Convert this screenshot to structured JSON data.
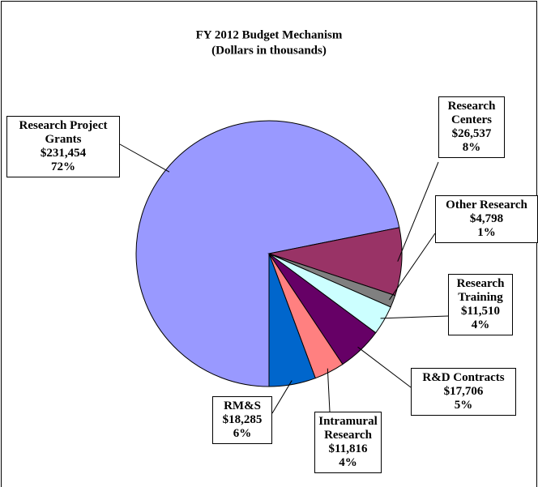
{
  "chart_data": {
    "type": "pie",
    "title": "FY  2012 Budget Mechanism",
    "subtitle": "(Dollars in thousands)",
    "categories": [
      "Research Project Grants",
      "Research Centers",
      "Other Research",
      "Research Training",
      "R&D Contracts",
      "Intramural Research",
      "RM&S"
    ],
    "values": [
      231454,
      26537,
      4798,
      11510,
      17706,
      11816,
      18285
    ],
    "value_labels": [
      "$231,454",
      "$26,537",
      "$4,798",
      "$11,510",
      "$17,706",
      "$11,816",
      "$18,285"
    ],
    "percentages": [
      72,
      8,
      1,
      4,
      5,
      4,
      6
    ],
    "percentage_labels": [
      "72%",
      "8%",
      "1%",
      "4%",
      "5%",
      "4%",
      "6%"
    ],
    "colors": [
      "#9999ff",
      "#993366",
      "#808080",
      "#ccffff",
      "#660066",
      "#ff8080",
      "#0066cc"
    ]
  }
}
